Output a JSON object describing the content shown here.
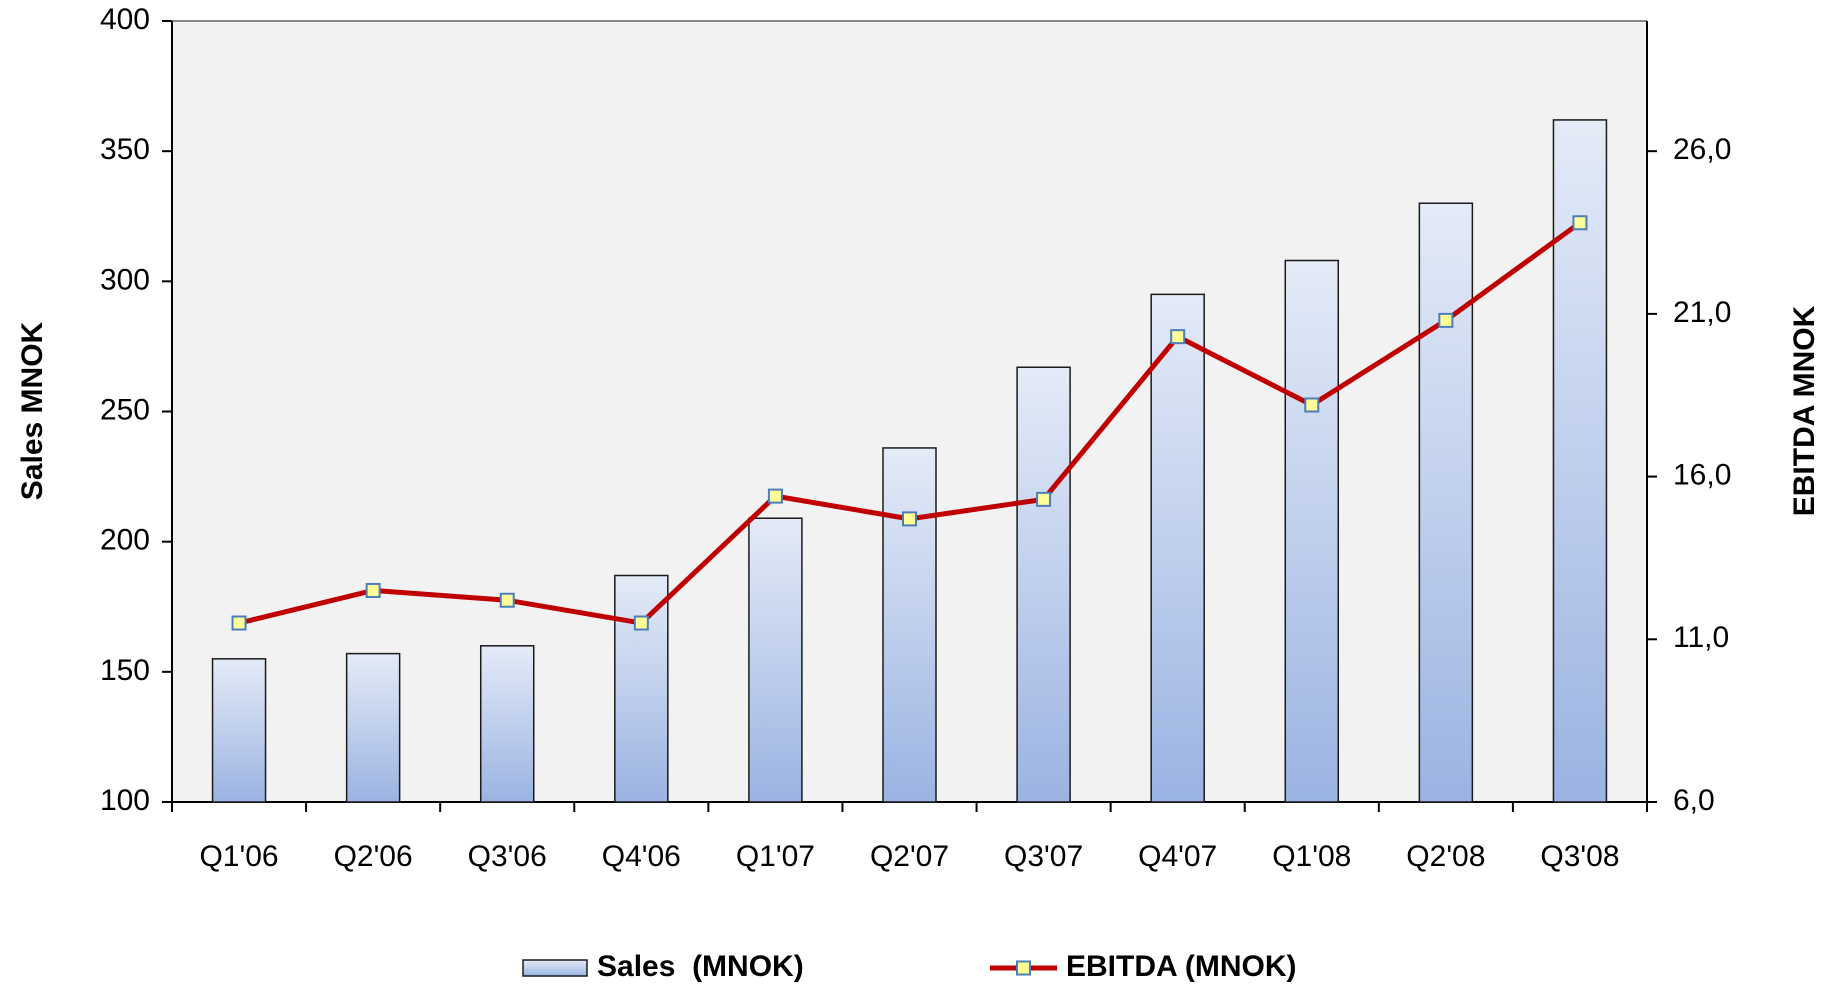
{
  "chart_data": {
    "type": "bar-line",
    "categories": [
      "Q1'06",
      "Q2'06",
      "Q3'06",
      "Q4'06",
      "Q1'07",
      "Q2'07",
      "Q3'07",
      "Q4'07",
      "Q1'08",
      "Q2'08",
      "Q3'08"
    ],
    "y_label": "Sales MNOK",
    "y2_label": "EBITDA MNOK",
    "series": [
      {
        "name": "Sales  (MNOK)",
        "type": "bar",
        "color": "#a4bbe4",
        "values": [
          155,
          157,
          160,
          187,
          209,
          236,
          267,
          295,
          308,
          330,
          362
        ]
      },
      {
        "name": "EBITDA (MNOK)",
        "type": "line",
        "axis": "y2",
        "color": "#c00000",
        "values": [
          11.5,
          12.5,
          12.2,
          11.5,
          15.4,
          14.7,
          15.3,
          20.3,
          18.2,
          20.8,
          23.8
        ]
      }
    ],
    "ylim": [
      100,
      400
    ],
    "yticks": [
      100,
      150,
      200,
      250,
      300,
      350,
      400
    ],
    "y2lim": [
      6,
      30
    ],
    "y2ticks": [
      {
        "value": 6,
        "label": "6,0"
      },
      {
        "value": 11,
        "label": "11,0"
      },
      {
        "value": 16,
        "label": "16,0"
      },
      {
        "value": 21,
        "label": "21,0"
      },
      {
        "value": 26,
        "label": "26,0"
      }
    ],
    "legend": "bottom"
  }
}
